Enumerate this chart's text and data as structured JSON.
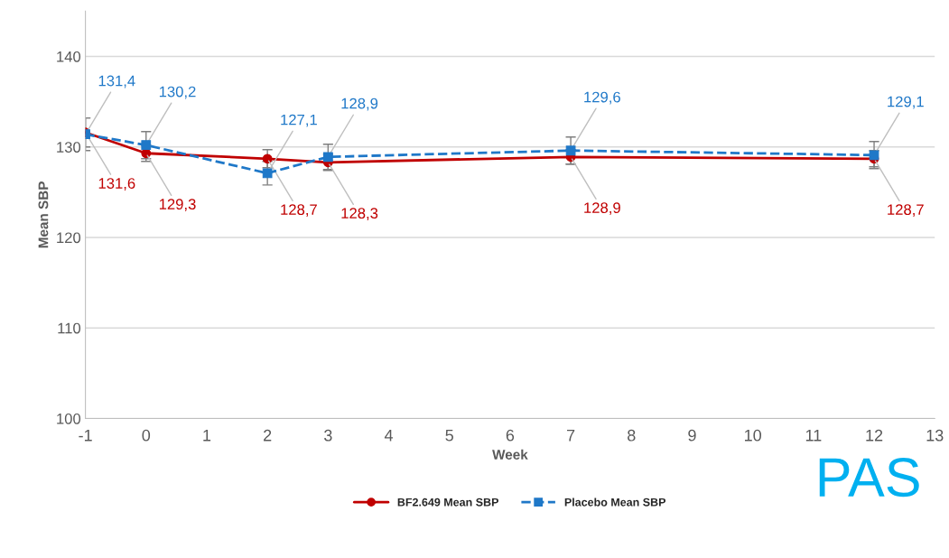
{
  "chart_data": {
    "type": "line",
    "xlabel": "Week",
    "ylabel": "Mean SBP",
    "x": [
      -1,
      0,
      2,
      3,
      7,
      12
    ],
    "series": [
      {
        "name": "BF2.649 Mean SBP",
        "color": "#c00000",
        "values": [
          131.6,
          129.3,
          128.7,
          128.3,
          128.9,
          128.7
        ],
        "errors": [
          1.6,
          0.9,
          1.0,
          0.9,
          0.8,
          0.9
        ],
        "value_labels": [
          "131,6",
          "129,3",
          "128,7",
          "128,3",
          "128,9",
          "128,7"
        ],
        "marker": "circle",
        "line_style": "solid"
      },
      {
        "name": "Placebo Mean SBP",
        "color": "#1f78c8",
        "values": [
          131.4,
          130.2,
          127.1,
          128.9,
          129.6,
          129.1
        ],
        "errors": [
          1.8,
          1.5,
          1.3,
          1.4,
          1.5,
          1.5
        ],
        "value_labels": [
          "131,4",
          "130,2",
          "127,1",
          "128,9",
          "129,6",
          "129,1"
        ],
        "marker": "square",
        "line_style": "dashed"
      }
    ],
    "xlim": [
      -1,
      13
    ],
    "xticks": [
      -1,
      0,
      1,
      2,
      3,
      4,
      5,
      6,
      7,
      8,
      9,
      10,
      11,
      12,
      13
    ],
    "ylim": [
      100,
      145
    ],
    "yticks": [
      100,
      110,
      120,
      130,
      140
    ],
    "grid": "y",
    "legend": "bottom",
    "annotations": [
      "PAS"
    ]
  }
}
